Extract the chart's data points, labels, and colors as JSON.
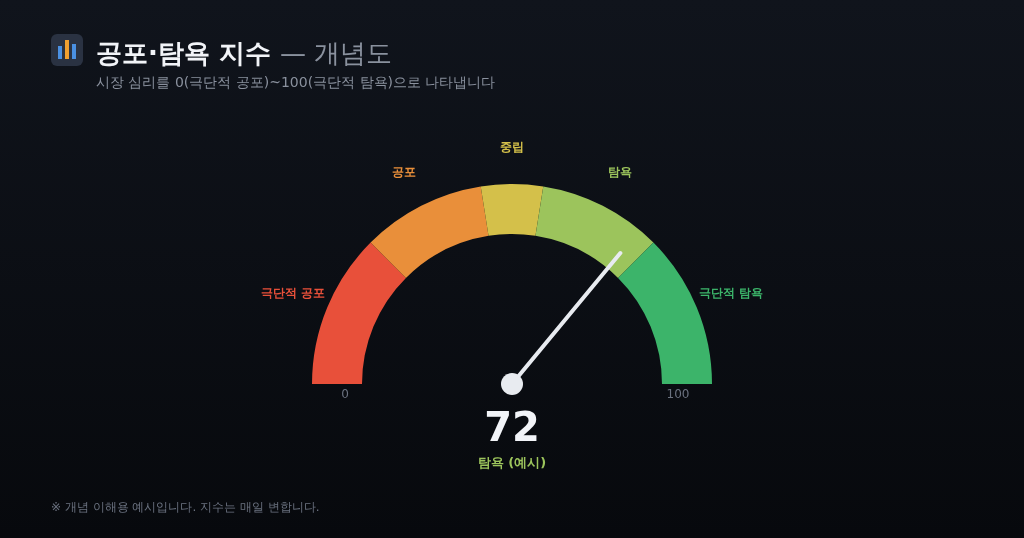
{
  "chart_data": {
    "type": "donut",
    "title": "공포·탐욕 지수 — 개념도",
    "subtitle": "시장 심리를 0(극단적 공포)~100(극단적 탐욕)으로 나타냅니다",
    "categories": [
      "극단적 공포",
      "공포",
      "중립",
      "탐욕",
      "극단적 탐욕"
    ],
    "values": [
      25,
      20,
      10,
      20,
      25
    ],
    "colors": [
      "#e8503a",
      "#e98f3a",
      "#d4c04a",
      "#9cc45c",
      "#3cb46a"
    ],
    "needle": "탐욕",
    "annotations": [
      "0",
      "100",
      "72",
      "탐욕 (예시)",
      "※ 개념 이해용 예시입니다. 지수는 매일 변합니다."
    ]
  }
}
